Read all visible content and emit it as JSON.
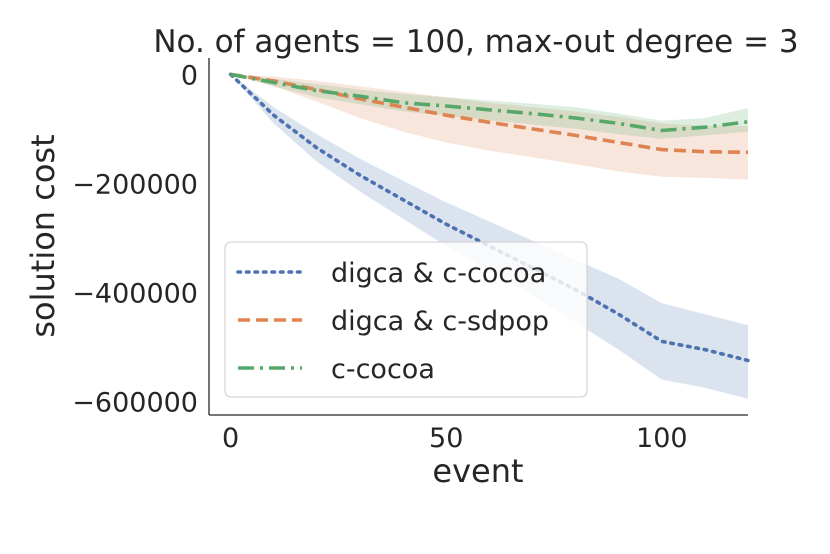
{
  "chart_data": {
    "type": "line",
    "title": "No. of agents = 100, max-out degree = 3",
    "xlabel": "event",
    "ylabel": "solution cost",
    "xlim": [
      -5,
      120
    ],
    "ylim": [
      -625000,
      30000
    ],
    "xticks": [
      0,
      50,
      100
    ],
    "xtick_labels": [
      "0",
      "50",
      "100"
    ],
    "yticks": [
      0,
      -200000,
      -400000,
      -600000
    ],
    "ytick_labels": [
      "0",
      "−200000",
      "−400000",
      "−600000"
    ],
    "grid": false,
    "legend_position": "lower-left",
    "x": [
      0,
      10,
      20,
      30,
      40,
      50,
      60,
      70,
      80,
      90,
      100,
      110,
      120
    ],
    "series": [
      {
        "name": "digca & c-cocoa",
        "color": "#4c72b0",
        "style": "dotted",
        "values": [
          0,
          -75000,
          -135000,
          -185000,
          -230000,
          -275000,
          -315000,
          -355000,
          -395000,
          -440000,
          -490000,
          -505000,
          -525000
        ],
        "lower": [
          0,
          -90000,
          -160000,
          -215000,
          -265000,
          -315000,
          -360000,
          -405000,
          -455000,
          -505000,
          -560000,
          -575000,
          -595000
        ],
        "upper": [
          0,
          -60000,
          -110000,
          -155000,
          -195000,
          -235000,
          -270000,
          -305000,
          -340000,
          -375000,
          -420000,
          -440000,
          -460000
        ]
      },
      {
        "name": "digca & c-sdpop",
        "color": "#dd8452",
        "style": "dashed",
        "values": [
          0,
          -12000,
          -28000,
          -45000,
          -60000,
          -75000,
          -88000,
          -100000,
          -112000,
          -125000,
          -138000,
          -142000,
          -143000
        ],
        "lower": [
          0,
          -22000,
          -50000,
          -80000,
          -105000,
          -125000,
          -140000,
          -152000,
          -165000,
          -178000,
          -188000,
          -190000,
          -193000
        ],
        "upper": [
          0,
          -4000,
          -12000,
          -22000,
          -32000,
          -42000,
          -52000,
          -60000,
          -68000,
          -78000,
          -90000,
          -95000,
          -95000
        ]
      },
      {
        "name": "c-cocoa",
        "color": "#55a868",
        "style": "dashdot",
        "values": [
          0,
          -15000,
          -30000,
          -40000,
          -52000,
          -58000,
          -65000,
          -72000,
          -80000,
          -90000,
          -103000,
          -97000,
          -87000
        ],
        "lower": [
          0,
          -22000,
          -42000,
          -55000,
          -68000,
          -76000,
          -84000,
          -92000,
          -100000,
          -110000,
          -118000,
          -112000,
          -105000
        ],
        "upper": [
          0,
          -8000,
          -18000,
          -28000,
          -36000,
          -42000,
          -48000,
          -54000,
          -60000,
          -72000,
          -85000,
          -80000,
          -62000
        ]
      }
    ]
  }
}
